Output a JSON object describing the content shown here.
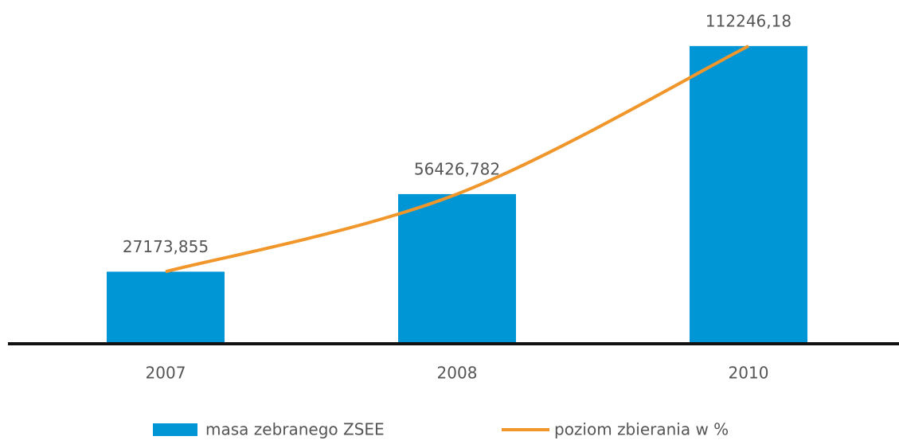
{
  "chart_data": {
    "type": "bar",
    "categories": [
      "2007",
      "2008",
      "2010"
    ],
    "series": [
      {
        "name": "masa zebranego ZSEE",
        "type": "bar",
        "color": "#0096d6",
        "values": [
          27173.855,
          56426.782,
          112246.18
        ],
        "value_labels": [
          "27173,855",
          "56426,782",
          "112246,18"
        ]
      },
      {
        "name": "poziom zbierania w %",
        "type": "line",
        "color": "#f0962a",
        "values": [
          27173.855,
          56426.782,
          112246.18
        ]
      }
    ],
    "ylim": [
      0,
      120000
    ]
  }
}
